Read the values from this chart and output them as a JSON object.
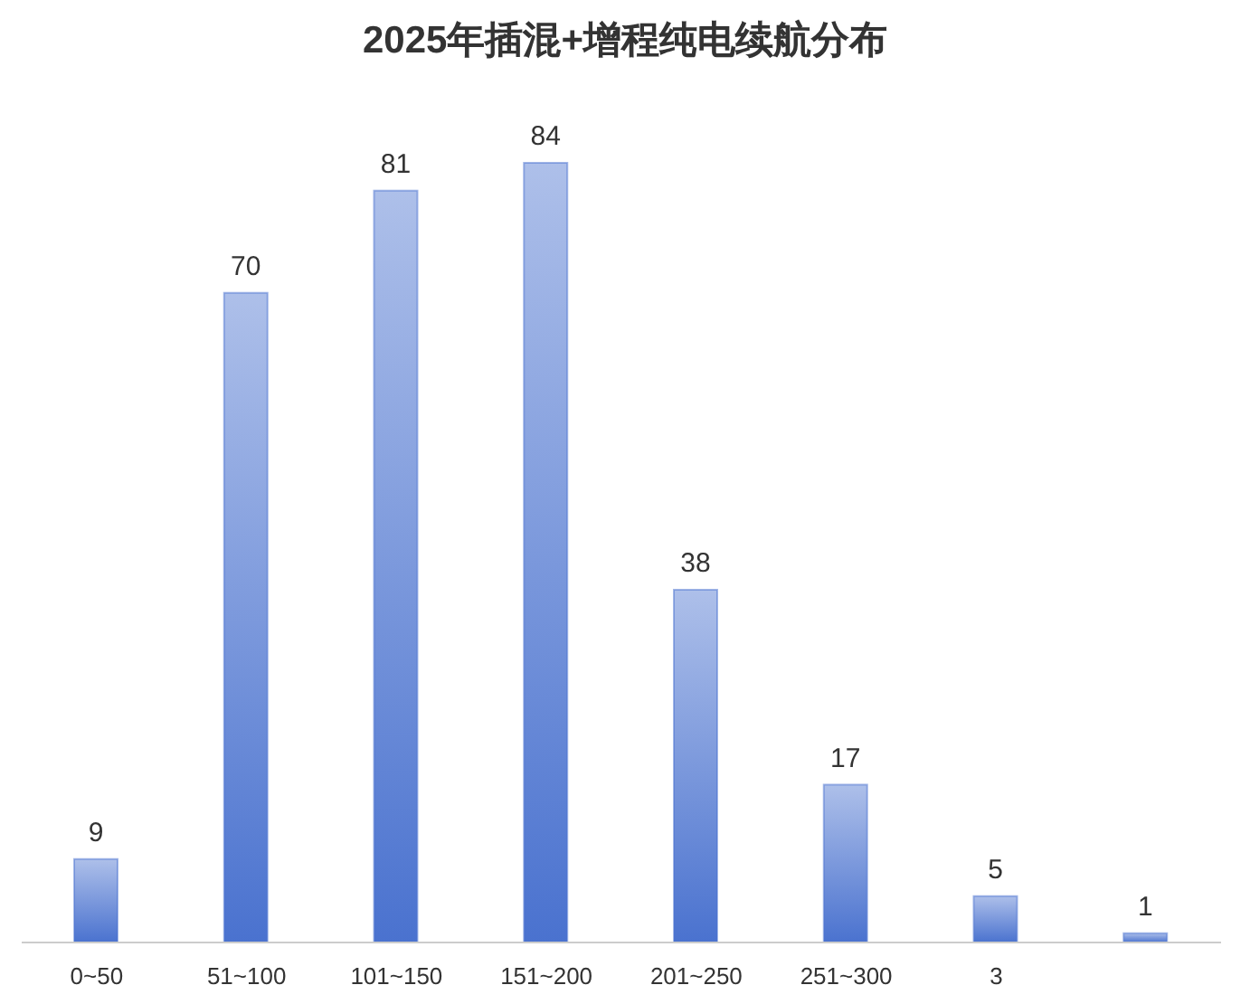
{
  "chart_data": {
    "type": "bar",
    "title": "2025年插混+增程纯电续航分布",
    "categories": [
      "0~50",
      "51~100",
      "101~150",
      "151~200",
      "201~250",
      "251~300",
      "3",
      null
    ],
    "values": [
      9,
      70,
      81,
      84,
      38,
      17,
      5,
      1
    ],
    "color": "#4a72cf",
    "data_labels": true,
    "grid": false,
    "legend": false
  }
}
